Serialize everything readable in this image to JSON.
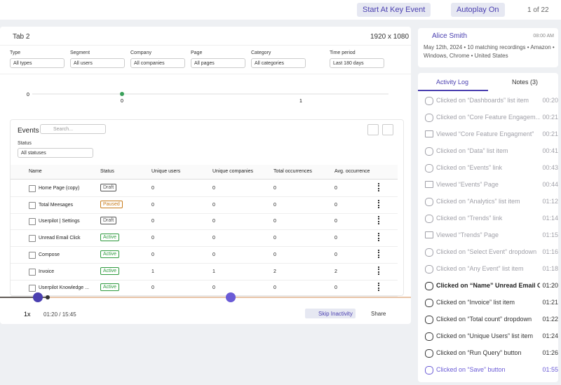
{
  "header": {
    "start_key_event": "Start At Key Event",
    "autoplay": "Autoplay On",
    "pager": "1 of 22"
  },
  "recording": {
    "tab": "Tab 2",
    "resolution": "1920 x 1080"
  },
  "filters": [
    {
      "label": "Type",
      "value": "All types"
    },
    {
      "label": "Segment",
      "value": "All users"
    },
    {
      "label": "Company",
      "value": "All companies"
    },
    {
      "label": "Page",
      "value": "All pages"
    },
    {
      "label": "Category",
      "value": "All categories"
    },
    {
      "label": "Time period",
      "value": "Last 180 days"
    }
  ],
  "mini_chart": {
    "y_label": "0",
    "x_labels": [
      "0",
      "1"
    ]
  },
  "events": {
    "title": "Events",
    "search_placeholder": "Search...",
    "status_label": "Status",
    "status_value": "All statuses",
    "columns": [
      "Name",
      "Status",
      "Unique users",
      "Unique companies",
      "Total occurrences",
      "Avg. occurrence"
    ],
    "rows": [
      {
        "name": "Home Page (copy)",
        "status": "Draft",
        "status_color": "#555",
        "unique_users": 0,
        "unique_companies": 0,
        "total_occurrences": 0,
        "avg_occurrence": 0
      },
      {
        "name": "Total Meesages",
        "status": "Paused",
        "status_color": "#c77a1a",
        "unique_users": 0,
        "unique_companies": 0,
        "total_occurrences": 0,
        "avg_occurrence": 0
      },
      {
        "name": "Userpilot | Settings",
        "status": "Draft",
        "status_color": "#555",
        "unique_users": 0,
        "unique_companies": 0,
        "total_occurrences": 0,
        "avg_occurrence": 0
      },
      {
        "name": "Unread Email Click",
        "status": "Active",
        "status_color": "#2e9a3e",
        "unique_users": 0,
        "unique_companies": 0,
        "total_occurrences": 0,
        "avg_occurrence": 0
      },
      {
        "name": "Compose",
        "status": "Active",
        "status_color": "#2e9a3e",
        "unique_users": 0,
        "unique_companies": 0,
        "total_occurrences": 0,
        "avg_occurrence": 0
      },
      {
        "name": "Invoice",
        "status": "Active",
        "status_color": "#2e9a3e",
        "unique_users": 1,
        "unique_companies": 1,
        "total_occurrences": 2,
        "avg_occurrence": 2
      },
      {
        "name": "Userpilot Knowledge ...",
        "status": "Active",
        "status_color": "#2e9a3e",
        "unique_users": 0,
        "unique_companies": 0,
        "total_occurrences": 0,
        "avg_occurrence": 0
      }
    ]
  },
  "player": {
    "speed": "1x",
    "time": "01:20 / 15:45",
    "skip": "Skip Inactivity",
    "share": "Share"
  },
  "user": {
    "name": "Alice Smith",
    "time": "08:00 AM",
    "details": "May 12th, 2024 • 10 matching recordings • Amazon • Windows, Chrome • United States"
  },
  "tabs": [
    "Activity Log",
    "Notes (3)"
  ],
  "activity": [
    {
      "text": "Clicked on “Dashboards” list item",
      "time": "00:20",
      "icon": "click",
      "color": "#a0a0a8"
    },
    {
      "text": "Clicked on “Core Feature Engagem...",
      "time": "00:21",
      "icon": "click",
      "color": "#a0a0a8"
    },
    {
      "text": "Viewed “Core Feature Engagment”",
      "time": "00:21",
      "icon": "page",
      "color": "#a0a0a8"
    },
    {
      "text": "Clicked on “Data” list item",
      "time": "00:41",
      "icon": "click",
      "color": "#a0a0a8"
    },
    {
      "text": "Clicked on “Events” link",
      "time": "00:43",
      "icon": "click",
      "color": "#a0a0a8"
    },
    {
      "text": "Viewed “Events” Page",
      "time": "00:44",
      "icon": "page",
      "color": "#a0a0a8"
    },
    {
      "text": "Clicked on “Analytics” list item",
      "time": "01:12",
      "icon": "click",
      "color": "#a0a0a8"
    },
    {
      "text": "Clicked on “Trends” link",
      "time": "01:14",
      "icon": "click",
      "color": "#a0a0a8"
    },
    {
      "text": "Viewed “Trends” Page",
      "time": "01:15",
      "icon": "page",
      "color": "#a0a0a8"
    },
    {
      "text": "Clicked on “Select Event” dropdown",
      "time": "01:16",
      "icon": "click",
      "color": "#a0a0a8"
    },
    {
      "text": "Clicked on “Any Event” list item",
      "time": "01:18",
      "icon": "click",
      "color": "#a0a0a8"
    },
    {
      "text": "Clicked on “Name”  Unread Email C...",
      "time": "01:20",
      "icon": "click",
      "color": "#222",
      "bold": true
    },
    {
      "text": "Clicked on “Invoice” list item",
      "time": "01:21",
      "icon": "click",
      "color": "#333"
    },
    {
      "text": "Clicked on “Total count” dropdown",
      "time": "01:22",
      "icon": "click",
      "color": "#333"
    },
    {
      "text": "Clicked on “Unique Users” list item",
      "time": "01:24",
      "icon": "click",
      "color": "#333"
    },
    {
      "text": "Clicked on “Run Query” button",
      "time": "01:26",
      "icon": "click",
      "color": "#333"
    },
    {
      "text": "Clicked on “Save” button",
      "time": "01:55",
      "icon": "click",
      "color": "#6a5bd6"
    }
  ]
}
